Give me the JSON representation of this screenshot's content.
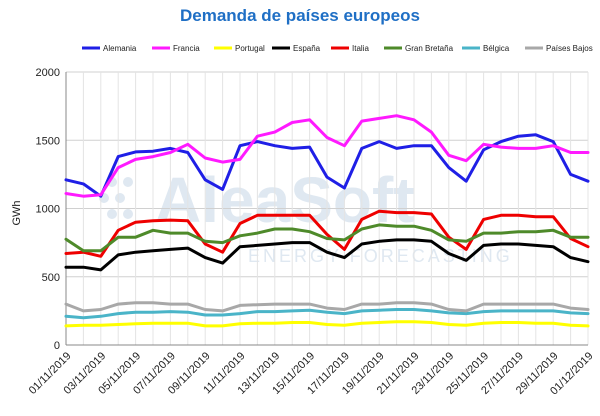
{
  "chart_data": {
    "type": "line",
    "title": "Demanda de países europeos",
    "ylabel": "GWh",
    "xlabel": "",
    "ylim": [
      0,
      2000
    ],
    "yticks": [
      0,
      500,
      1000,
      1500,
      2000
    ],
    "grid": true,
    "legend": "top",
    "watermark": {
      "main": "AleaSoft",
      "sub": "ENERGY FORECASTING"
    },
    "x": [
      "01/11/2019",
      "02/11/2019",
      "03/11/2019",
      "04/11/2019",
      "05/11/2019",
      "06/11/2019",
      "07/11/2019",
      "08/11/2019",
      "09/11/2019",
      "10/11/2019",
      "11/11/2019",
      "12/11/2019",
      "13/11/2019",
      "14/11/2019",
      "15/11/2019",
      "16/11/2019",
      "17/11/2019",
      "18/11/2019",
      "19/11/2019",
      "20/11/2019",
      "21/11/2019",
      "22/11/2019",
      "23/11/2019",
      "24/11/2019",
      "25/11/2019",
      "26/11/2019",
      "27/11/2019",
      "28/11/2019",
      "29/11/2019",
      "30/11/2019",
      "01/12/2019"
    ],
    "xtick_labels": [
      "01/11/2019",
      "03/11/2019",
      "05/11/2019",
      "07/11/2019",
      "09/11/2019",
      "11/11/2019",
      "13/11/2019",
      "15/11/2019",
      "17/11/2019",
      "19/11/2019",
      "21/11/2019",
      "23/11/2019",
      "25/11/2019",
      "27/11/2019",
      "29/11/2019",
      "01/12/2019"
    ],
    "series": [
      {
        "name": "Alemania",
        "color": "#1f1fe6",
        "values": [
          1210,
          1180,
          1090,
          1380,
          1415,
          1420,
          1440,
          1410,
          1210,
          1140,
          1460,
          1490,
          1460,
          1440,
          1450,
          1230,
          1150,
          1440,
          1490,
          1440,
          1460,
          1460,
          1300,
          1200,
          1430,
          1490,
          1530,
          1540,
          1490,
          1250,
          1200
        ]
      },
      {
        "name": "Francia",
        "color": "#ff1aff",
        "values": [
          1110,
          1090,
          1100,
          1300,
          1360,
          1380,
          1410,
          1470,
          1370,
          1340,
          1360,
          1530,
          1560,
          1630,
          1650,
          1520,
          1460,
          1640,
          1660,
          1680,
          1650,
          1560,
          1390,
          1350,
          1470,
          1450,
          1440,
          1440,
          1460,
          1410,
          1410
        ]
      },
      {
        "name": "Portugal",
        "color": "#ffff00",
        "values": [
          140,
          145,
          145,
          150,
          155,
          160,
          160,
          160,
          140,
          140,
          155,
          160,
          160,
          165,
          165,
          150,
          145,
          160,
          165,
          170,
          170,
          165,
          150,
          145,
          160,
          165,
          165,
          160,
          160,
          145,
          140
        ]
      },
      {
        "name": "España",
        "color": "#000000",
        "values": [
          570,
          570,
          550,
          660,
          680,
          690,
          700,
          710,
          640,
          600,
          720,
          730,
          740,
          750,
          750,
          680,
          640,
          740,
          760,
          770,
          770,
          760,
          670,
          620,
          730,
          740,
          740,
          730,
          720,
          640,
          610
        ]
      },
      {
        "name": "Italia",
        "color": "#ee0000",
        "values": [
          670,
          680,
          650,
          840,
          900,
          910,
          915,
          910,
          740,
          680,
          890,
          950,
          950,
          950,
          950,
          810,
          700,
          920,
          980,
          970,
          970,
          960,
          790,
          700,
          920,
          950,
          950,
          940,
          940,
          780,
          720
        ]
      },
      {
        "name": "Gran Bretaña",
        "color": "#4e8a2a",
        "values": [
          775,
          690,
          690,
          790,
          790,
          840,
          820,
          820,
          760,
          750,
          800,
          820,
          850,
          850,
          830,
          780,
          770,
          850,
          880,
          870,
          870,
          840,
          770,
          760,
          820,
          820,
          830,
          830,
          840,
          790,
          790
        ]
      },
      {
        "name": "Bélgica",
        "color": "#4ab4c8",
        "values": [
          210,
          200,
          210,
          230,
          240,
          240,
          245,
          240,
          220,
          220,
          230,
          245,
          245,
          250,
          255,
          240,
          230,
          250,
          255,
          260,
          260,
          250,
          235,
          230,
          245,
          250,
          250,
          250,
          250,
          235,
          230
        ]
      },
      {
        "name": "Países Bajos",
        "color": "#a8a8a8",
        "values": [
          300,
          250,
          260,
          300,
          310,
          310,
          300,
          300,
          260,
          250,
          290,
          295,
          300,
          300,
          300,
          270,
          260,
          300,
          300,
          310,
          310,
          300,
          260,
          250,
          300,
          300,
          300,
          300,
          300,
          270,
          260
        ]
      }
    ]
  }
}
